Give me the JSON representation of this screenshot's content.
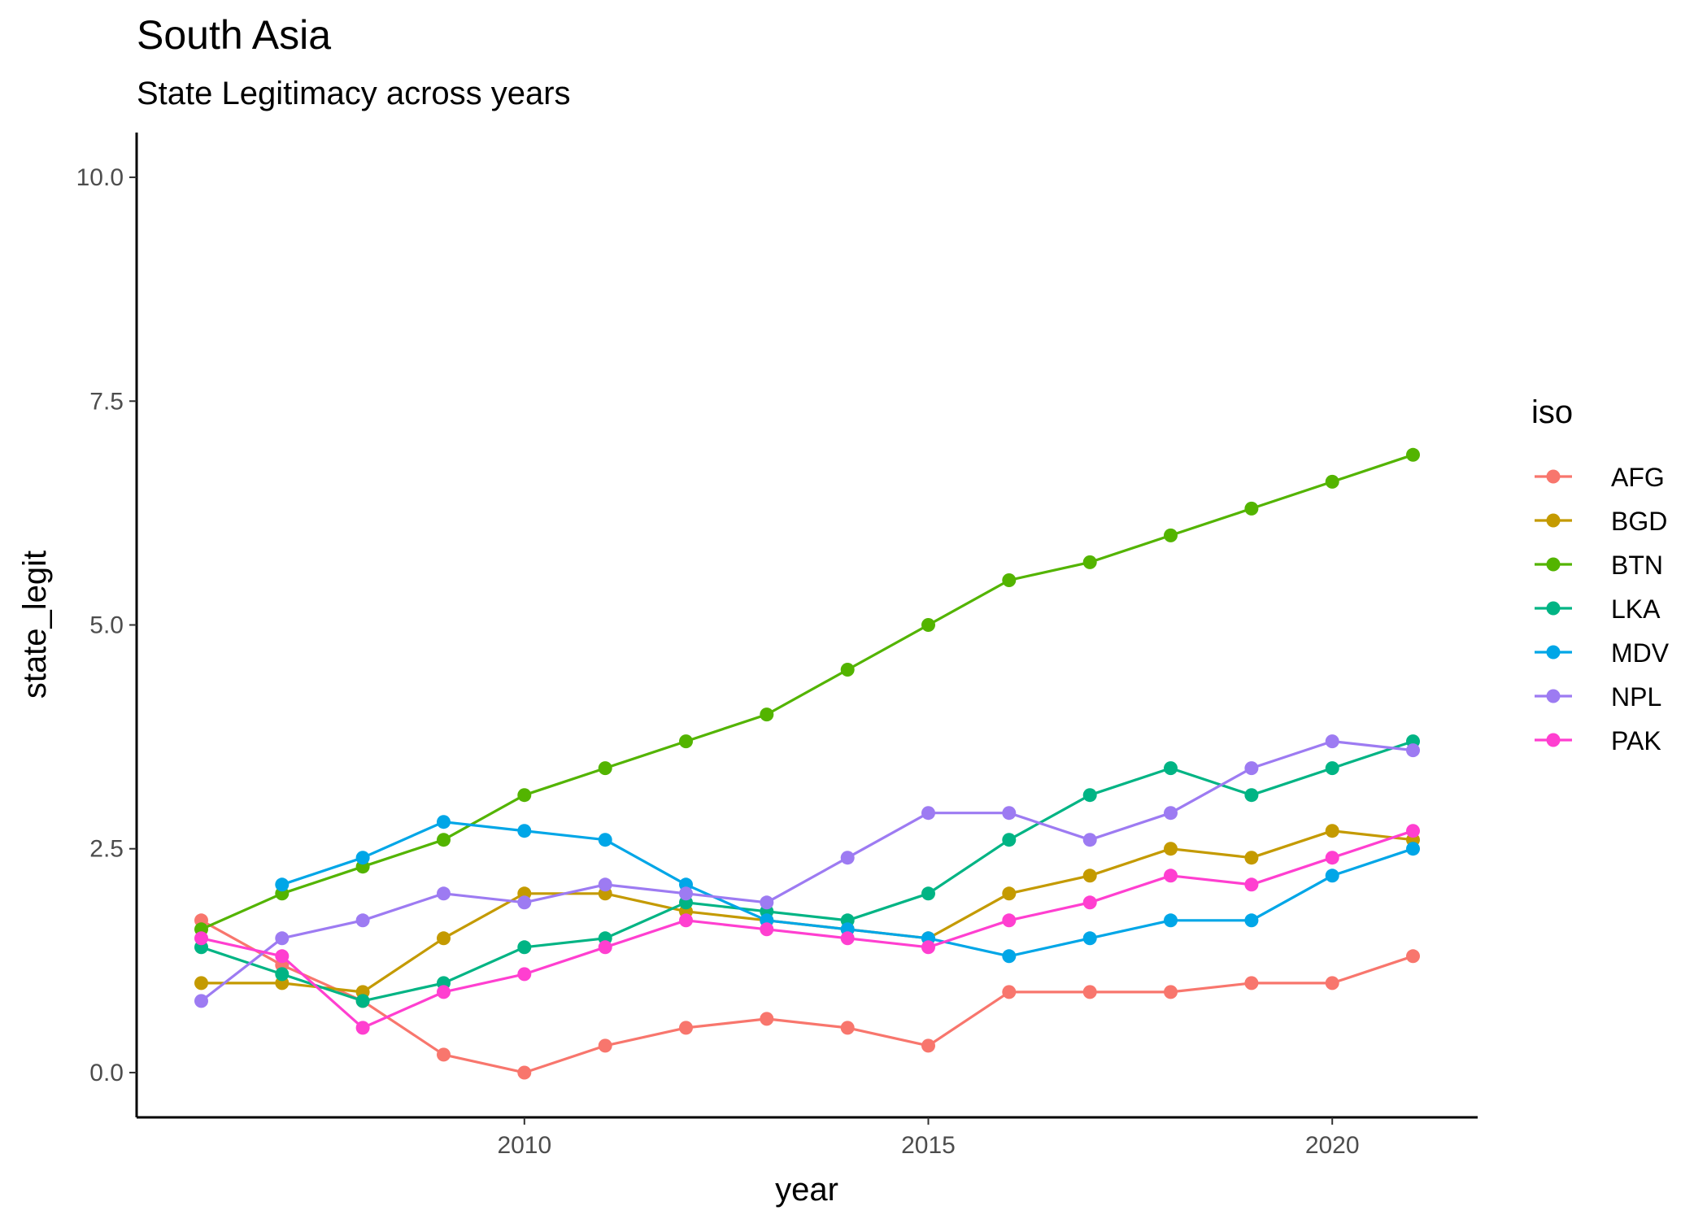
{
  "chart_data": {
    "type": "line",
    "title": "South Asia",
    "subtitle": "State Legitimacy across years",
    "xlabel": "year",
    "ylabel": "state_legit",
    "x": [
      2006,
      2007,
      2008,
      2009,
      2010,
      2011,
      2012,
      2013,
      2014,
      2015,
      2016,
      2017,
      2018,
      2019,
      2020,
      2021
    ],
    "xlim": [
      2005.2,
      2021.8
    ],
    "ylim": [
      -0.5,
      10.5
    ],
    "x_ticks": [
      2010,
      2015,
      2020
    ],
    "x_tick_labels": [
      "2010",
      "2015",
      "2020"
    ],
    "y_ticks": [
      0,
      2.5,
      5,
      7.5,
      10
    ],
    "y_tick_labels": [
      "0.0",
      "2.5",
      "5.0",
      "7.5",
      "10.0"
    ],
    "grid": false,
    "markers": true,
    "legend": {
      "title": "iso",
      "position": "right"
    },
    "series": [
      {
        "name": "AFG",
        "color": "#F8766D",
        "values": [
          1.7,
          1.2,
          0.8,
          0.2,
          0.0,
          0.3,
          0.5,
          0.6,
          0.5,
          0.3,
          0.9,
          0.9,
          0.9,
          1.0,
          1.0,
          1.3
        ]
      },
      {
        "name": "BGD",
        "color": "#C49A00",
        "values": [
          1.0,
          1.0,
          0.9,
          1.5,
          2.0,
          2.0,
          1.8,
          1.7,
          1.6,
          1.5,
          2.0,
          2.2,
          2.5,
          2.4,
          2.7,
          2.6
        ]
      },
      {
        "name": "BTN",
        "color": "#53B400",
        "values": [
          1.6,
          2.0,
          2.3,
          2.6,
          3.1,
          3.4,
          3.7,
          4.0,
          4.5,
          5.0,
          5.5,
          5.7,
          6.0,
          6.3,
          6.6,
          6.9
        ]
      },
      {
        "name": "LKA",
        "color": "#00B484",
        "values": [
          1.4,
          1.1,
          0.8,
          1.0,
          1.4,
          1.5,
          1.9,
          1.8,
          1.7,
          2.0,
          2.6,
          3.1,
          3.4,
          3.1,
          3.4,
          3.7
        ]
      },
      {
        "name": "MDV",
        "color": "#00A6E7",
        "values": [
          null,
          2.1,
          2.4,
          2.8,
          2.7,
          2.6,
          2.1,
          1.7,
          1.6,
          1.5,
          1.3,
          1.5,
          1.7,
          1.7,
          2.2,
          2.5
        ]
      },
      {
        "name": "NPL",
        "color": "#9D7BF2",
        "values": [
          0.8,
          1.5,
          1.7,
          2.0,
          1.9,
          2.1,
          2.0,
          1.9,
          2.4,
          2.9,
          2.9,
          2.6,
          2.9,
          3.4,
          3.7,
          3.6
        ]
      },
      {
        "name": "PAK",
        "color": "#FF3FD0",
        "values": [
          1.5,
          1.3,
          0.5,
          0.9,
          1.1,
          1.4,
          1.7,
          1.6,
          1.5,
          1.4,
          1.7,
          1.9,
          2.2,
          2.1,
          2.4,
          2.7
        ]
      }
    ]
  }
}
